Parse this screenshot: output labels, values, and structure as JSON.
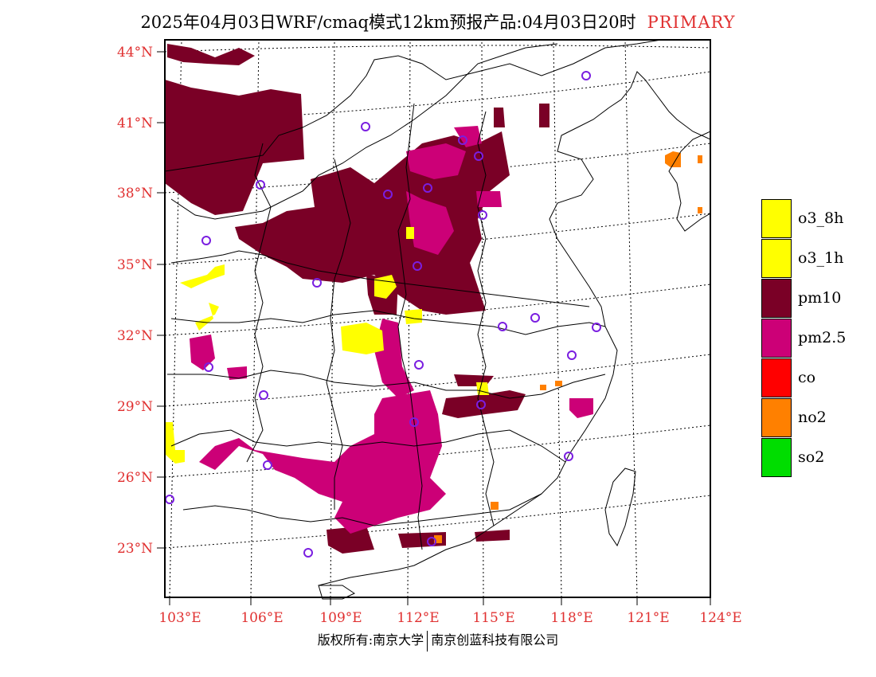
{
  "title": {
    "main": "2025年04月03日WRF/cmaq模式12km预报产品:04月03日20时",
    "tag": "PRIMARY"
  },
  "lat_labels": [
    "44°N",
    "41°N",
    "38°N",
    "35°N",
    "32°N",
    "29°N",
    "26°N",
    "23°N"
  ],
  "lon_labels": [
    "103°E",
    "106°E",
    "109°E",
    "112°E",
    "115°E",
    "118°E",
    "121°E",
    "124°E"
  ],
  "legend": [
    {
      "label": "o3_8h",
      "color": "#ffff00"
    },
    {
      "label": "o3_1h",
      "color": "#ffff00"
    },
    {
      "label": "pm10",
      "color": "#7a0026"
    },
    {
      "label": "pm2.5",
      "color": "#cc0077"
    },
    {
      "label": "co",
      "color": "#ff0000"
    },
    {
      "label": "no2",
      "color": "#ff8000"
    },
    {
      "label": "so2",
      "color": "#00dd00"
    }
  ],
  "footer": {
    "left": "版权所有:南京大学",
    "right": "南京创蓝科技有限公司"
  }
}
